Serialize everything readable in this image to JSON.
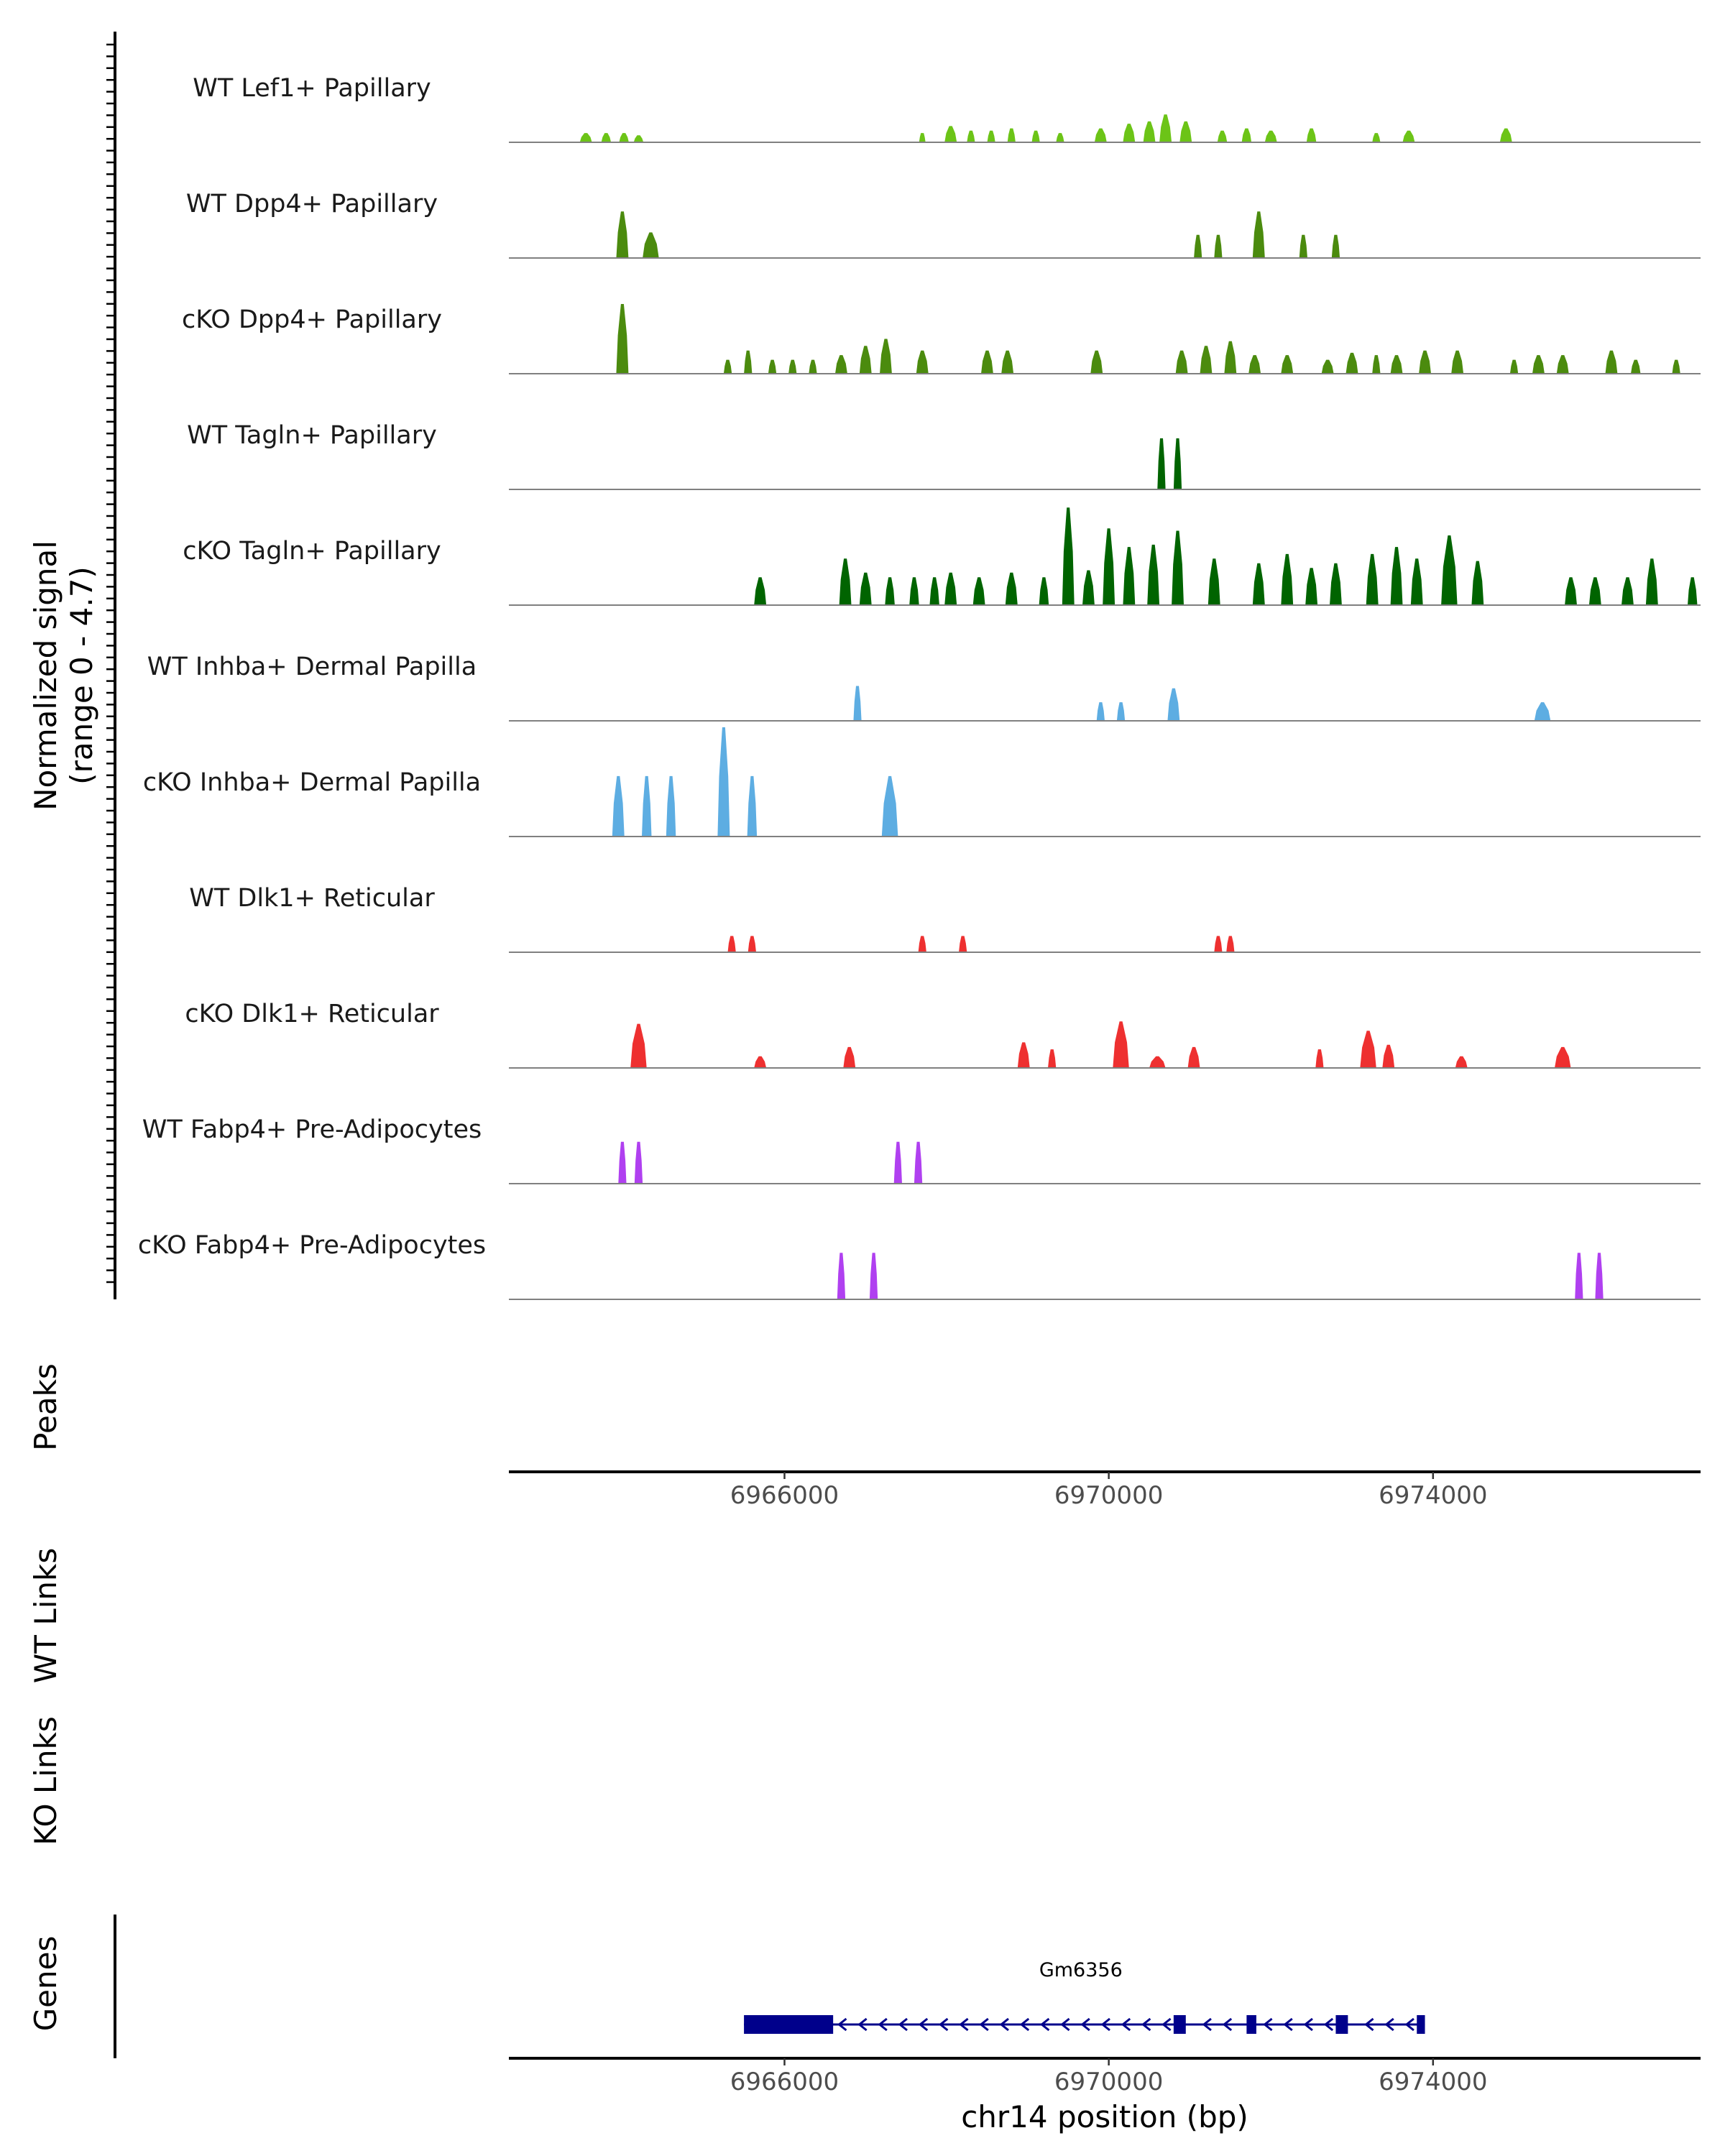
{
  "chart_data": {
    "type": "area",
    "title": "",
    "region": {
      "chrom": "chr14",
      "start": 6962600,
      "end": 6977300
    },
    "axes": {
      "ylabel_line1": "Normalized signal",
      "ylabel_line2": "(range 0 - 4.7)",
      "xlabel": "chr14 position (bp)",
      "y_range": [
        0,
        4.7
      ],
      "x_ticks": [
        6966000,
        6970000,
        6974000
      ],
      "x_tick_labels": [
        "6966000",
        "6970000",
        "6974000"
      ]
    },
    "panel_labels": {
      "peaks": "Peaks",
      "wt_links": "WT Links",
      "ko_links": "KO Links",
      "genes": "Genes"
    },
    "tracks": [
      {
        "name": "WT Lef1+ Papillary",
        "color": "#6CC417",
        "peaks": [
          [
            6963550,
            0.4,
            150
          ],
          [
            6963800,
            0.4,
            120
          ],
          [
            6964020,
            0.4,
            120
          ],
          [
            6964200,
            0.3,
            120
          ],
          [
            6967700,
            0.4,
            80
          ],
          [
            6968050,
            0.7,
            150
          ],
          [
            6968300,
            0.5,
            100
          ],
          [
            6968550,
            0.5,
            100
          ],
          [
            6968800,
            0.6,
            100
          ],
          [
            6969100,
            0.5,
            100
          ],
          [
            6969400,
            0.4,
            100
          ],
          [
            6969900,
            0.6,
            150
          ],
          [
            6970250,
            0.8,
            150
          ],
          [
            6970500,
            0.9,
            150
          ],
          [
            6970700,
            1.2,
            150
          ],
          [
            6970950,
            0.9,
            150
          ],
          [
            6971400,
            0.5,
            120
          ],
          [
            6971700,
            0.6,
            120
          ],
          [
            6972000,
            0.5,
            150
          ],
          [
            6972500,
            0.6,
            120
          ],
          [
            6973300,
            0.4,
            100
          ],
          [
            6973700,
            0.5,
            150
          ],
          [
            6974900,
            0.6,
            150
          ]
        ]
      },
      {
        "name": "WT Dpp4+ Papillary",
        "color": "#4B8B0E",
        "peaks": [
          [
            6964000,
            2.0,
            150
          ],
          [
            6964350,
            1.1,
            200
          ],
          [
            6971100,
            1.0,
            100
          ],
          [
            6971350,
            1.0,
            100
          ],
          [
            6971850,
            2.0,
            150
          ],
          [
            6972400,
            1.0,
            100
          ],
          [
            6972800,
            1.0,
            100
          ]
        ]
      },
      {
        "name": "cKO Dpp4+ Papillary",
        "color": "#4B8B0E",
        "peaks": [
          [
            6964000,
            3.0,
            150
          ],
          [
            6965300,
            0.6,
            100
          ],
          [
            6965550,
            1.0,
            100
          ],
          [
            6965850,
            0.6,
            100
          ],
          [
            6966100,
            0.6,
            100
          ],
          [
            6966350,
            0.6,
            100
          ],
          [
            6966700,
            0.8,
            150
          ],
          [
            6967000,
            1.2,
            150
          ],
          [
            6967250,
            1.5,
            150
          ],
          [
            6967700,
            1.0,
            150
          ],
          [
            6968500,
            1.0,
            150
          ],
          [
            6968750,
            1.0,
            150
          ],
          [
            6969850,
            1.0,
            150
          ],
          [
            6970900,
            1.0,
            150
          ],
          [
            6971200,
            1.2,
            150
          ],
          [
            6971500,
            1.4,
            150
          ],
          [
            6971800,
            0.8,
            150
          ],
          [
            6972200,
            0.8,
            150
          ],
          [
            6972700,
            0.6,
            150
          ],
          [
            6973000,
            0.9,
            150
          ],
          [
            6973300,
            0.8,
            100
          ],
          [
            6973550,
            0.8,
            150
          ],
          [
            6973900,
            1.0,
            150
          ],
          [
            6974300,
            1.0,
            150
          ],
          [
            6975000,
            0.6,
            100
          ],
          [
            6975300,
            0.8,
            150
          ],
          [
            6975600,
            0.8,
            150
          ],
          [
            6976200,
            1.0,
            150
          ],
          [
            6976500,
            0.6,
            120
          ],
          [
            6977000,
            0.6,
            100
          ]
        ]
      },
      {
        "name": "WT Tagln+ Papillary",
        "color": "#006400",
        "peaks": [
          [
            6970650,
            2.2,
            100
          ],
          [
            6970850,
            2.2,
            100
          ]
        ]
      },
      {
        "name": "cKO Tagln+ Papillary",
        "color": "#006400",
        "peaks": [
          [
            6965700,
            1.2,
            150
          ],
          [
            6966750,
            2.0,
            150
          ],
          [
            6967000,
            1.4,
            150
          ],
          [
            6967300,
            1.2,
            120
          ],
          [
            6967600,
            1.2,
            120
          ],
          [
            6967850,
            1.2,
            120
          ],
          [
            6968050,
            1.4,
            150
          ],
          [
            6968400,
            1.2,
            150
          ],
          [
            6968800,
            1.4,
            150
          ],
          [
            6969200,
            1.2,
            120
          ],
          [
            6969500,
            4.2,
            150
          ],
          [
            6969750,
            1.5,
            150
          ],
          [
            6970000,
            3.3,
            150
          ],
          [
            6970250,
            2.5,
            150
          ],
          [
            6970550,
            2.6,
            150
          ],
          [
            6970850,
            3.2,
            150
          ],
          [
            6971300,
            2.0,
            150
          ],
          [
            6971850,
            1.8,
            150
          ],
          [
            6972200,
            2.2,
            150
          ],
          [
            6972500,
            1.6,
            150
          ],
          [
            6972800,
            1.8,
            150
          ],
          [
            6973250,
            2.2,
            150
          ],
          [
            6973550,
            2.5,
            150
          ],
          [
            6973800,
            2.0,
            150
          ],
          [
            6974200,
            3.0,
            200
          ],
          [
            6974550,
            1.9,
            150
          ],
          [
            6975700,
            1.2,
            150
          ],
          [
            6976000,
            1.2,
            150
          ],
          [
            6976400,
            1.2,
            150
          ],
          [
            6976700,
            2.0,
            150
          ],
          [
            6977200,
            1.2,
            120
          ]
        ]
      },
      {
        "name": "WT Inhba+ Dermal Papilla",
        "color": "#5DADE2",
        "peaks": [
          [
            6966900,
            1.5,
            100
          ],
          [
            6969900,
            0.8,
            100
          ],
          [
            6970150,
            0.8,
            100
          ],
          [
            6970800,
            1.4,
            150
          ],
          [
            6975350,
            0.8,
            200
          ]
        ]
      },
      {
        "name": "cKO Inhba+ Dermal Papilla",
        "color": "#5DADE2",
        "peaks": [
          [
            6963950,
            2.6,
            150
          ],
          [
            6964300,
            2.6,
            120
          ],
          [
            6964600,
            2.6,
            120
          ],
          [
            6965250,
            4.7,
            150
          ],
          [
            6965600,
            2.6,
            120
          ],
          [
            6967300,
            2.6,
            200
          ]
        ]
      },
      {
        "name": "WT Dlk1+ Reticular",
        "color": "#EE3030",
        "peaks": [
          [
            6965350,
            0.7,
            100
          ],
          [
            6965600,
            0.7,
            100
          ],
          [
            6967700,
            0.7,
            100
          ],
          [
            6968200,
            0.7,
            100
          ],
          [
            6971350,
            0.7,
            100
          ],
          [
            6971500,
            0.7,
            100
          ]
        ]
      },
      {
        "name": "cKO Dlk1+ Reticular",
        "color": "#EE3030",
        "peaks": [
          [
            6964200,
            1.9,
            200
          ],
          [
            6965700,
            0.5,
            150
          ],
          [
            6966800,
            0.9,
            150
          ],
          [
            6968950,
            1.1,
            150
          ],
          [
            6969300,
            0.8,
            100
          ],
          [
            6970150,
            2.0,
            200
          ],
          [
            6970600,
            0.5,
            200
          ],
          [
            6971050,
            0.9,
            150
          ],
          [
            6972600,
            0.8,
            100
          ],
          [
            6973200,
            1.6,
            200
          ],
          [
            6973450,
            1.0,
            150
          ],
          [
            6974350,
            0.5,
            150
          ],
          [
            6975600,
            0.9,
            200
          ]
        ]
      },
      {
        "name": "WT Fabp4+ Pre-Adipocytes",
        "color": "#B040F0",
        "peaks": [
          [
            6964000,
            1.8,
            100
          ],
          [
            6964200,
            1.8,
            100
          ],
          [
            6967400,
            1.8,
            100
          ],
          [
            6967650,
            1.8,
            100
          ]
        ]
      },
      {
        "name": "cKO Fabp4+ Pre-Adipocytes",
        "color": "#B040F0",
        "peaks": [
          [
            6966700,
            2.0,
            100
          ],
          [
            6967100,
            2.0,
            100
          ],
          [
            6975800,
            2.0,
            100
          ],
          [
            6976050,
            2.0,
            100
          ]
        ]
      }
    ],
    "gene": {
      "name": "Gm6356",
      "start": 6965500,
      "end": 6973900,
      "strand": "-",
      "color": "#00008B",
      "exons": [
        [
          6965500,
          6966600
        ],
        [
          6970800,
          6970950
        ],
        [
          6971700,
          6971820
        ],
        [
          6972800,
          6972950
        ],
        [
          6973800,
          6973900
        ]
      ]
    }
  }
}
